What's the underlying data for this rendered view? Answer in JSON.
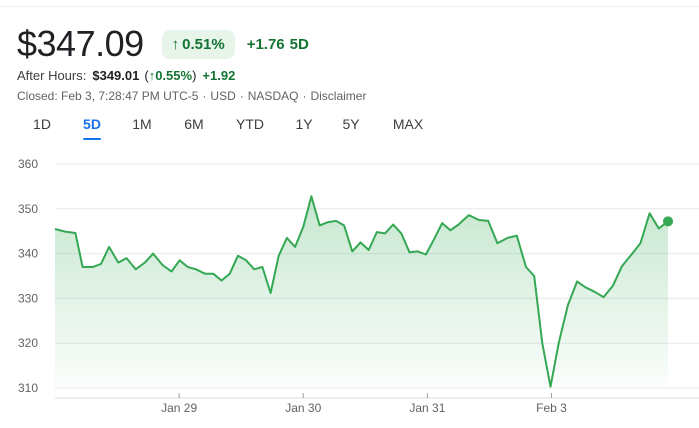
{
  "quote": {
    "price": "$347.09",
    "change_pct": "0.51%",
    "change_abs": "+1.76",
    "period": "5D",
    "after_hours_label": "After Hours:",
    "after_hours_price": "$349.01",
    "after_hours_pct": "0.55%",
    "after_hours_change": "+1.92",
    "closed_text": "Closed: Feb 3, 7:28:47 PM UTC-5",
    "currency": "USD",
    "exchange": "NASDAQ",
    "disclaimer": "Disclaimer"
  },
  "tabs": [
    {
      "label": "1D",
      "active": false
    },
    {
      "label": "5D",
      "active": true
    },
    {
      "label": "1M",
      "active": false
    },
    {
      "label": "6M",
      "active": false
    },
    {
      "label": "YTD",
      "active": false
    },
    {
      "label": "1Y",
      "active": false
    },
    {
      "label": "5Y",
      "active": false
    },
    {
      "label": "MAX",
      "active": false
    }
  ],
  "colors": {
    "line": "#34a853",
    "positive_text": "#137333",
    "chip_bg": "#e6f4ea",
    "accent": "#1a73e8"
  },
  "chart_data": {
    "type": "area",
    "yticks": [
      310,
      320,
      330,
      340,
      350,
      360
    ],
    "ylim": [
      310,
      360
    ],
    "grid": true,
    "xticks": [
      {
        "label": "Jan 29",
        "t": 12.15
      },
      {
        "label": "Jan 30",
        "t": 24.3
      },
      {
        "label": "Jan 31",
        "t": 36.45
      },
      {
        "label": "Feb 3",
        "t": 48.6
      }
    ],
    "xlim": [
      0,
      60
    ],
    "series": [
      {
        "points": [
          [
            0,
            345.5
          ],
          [
            1,
            344.9
          ],
          [
            2,
            344.6
          ],
          [
            2.7,
            337.0
          ],
          [
            3.7,
            337.0
          ],
          [
            4.5,
            337.7
          ],
          [
            5.3,
            341.5
          ],
          [
            6.2,
            338.0
          ],
          [
            7.0,
            339.0
          ],
          [
            7.9,
            336.5
          ],
          [
            8.8,
            338.0
          ],
          [
            9.6,
            340.0
          ],
          [
            10.5,
            337.5
          ],
          [
            11.4,
            336.0
          ],
          [
            12.2,
            338.5
          ],
          [
            13.0,
            337.0
          ],
          [
            13.8,
            336.5
          ],
          [
            14.7,
            335.5
          ],
          [
            15.5,
            335.5
          ],
          [
            16.3,
            334.0
          ],
          [
            17.1,
            335.5
          ],
          [
            17.9,
            339.5
          ],
          [
            18.7,
            338.5
          ],
          [
            19.5,
            336.5
          ],
          [
            20.3,
            337.0
          ],
          [
            21.1,
            331.2
          ],
          [
            21.9,
            339.5
          ],
          [
            22.7,
            343.5
          ],
          [
            23.5,
            341.5
          ],
          [
            24.3,
            346.0
          ],
          [
            25.1,
            352.8
          ],
          [
            25.9,
            346.3
          ],
          [
            26.7,
            347.0
          ],
          [
            27.5,
            347.3
          ],
          [
            28.3,
            346.3
          ],
          [
            29.1,
            340.5
          ],
          [
            29.9,
            342.5
          ],
          [
            30.7,
            340.8
          ],
          [
            31.5,
            344.8
          ],
          [
            32.3,
            344.5
          ],
          [
            33.1,
            346.5
          ],
          [
            33.9,
            344.5
          ],
          [
            34.7,
            340.3
          ],
          [
            35.5,
            340.5
          ],
          [
            36.3,
            339.8
          ],
          [
            37.1,
            343.2
          ],
          [
            37.9,
            346.8
          ],
          [
            38.7,
            345.2
          ],
          [
            39.5,
            346.5
          ],
          [
            40.5,
            348.6
          ],
          [
            41.5,
            347.5
          ],
          [
            42.4,
            347.3
          ],
          [
            43.3,
            342.3
          ],
          [
            44.3,
            343.5
          ],
          [
            45.2,
            344.0
          ],
          [
            46.1,
            337.0
          ],
          [
            46.9,
            335.0
          ],
          [
            47.7,
            320.0
          ],
          [
            48.5,
            310.3
          ],
          [
            49.3,
            320.0
          ],
          [
            50.2,
            328.5
          ],
          [
            51.1,
            333.8
          ],
          [
            51.9,
            332.5
          ],
          [
            52.8,
            331.5
          ],
          [
            53.7,
            330.3
          ],
          [
            54.6,
            332.8
          ],
          [
            55.5,
            337.2
          ],
          [
            56.4,
            339.7
          ],
          [
            57.3,
            342.3
          ],
          [
            58.2,
            349.0
          ],
          [
            59.1,
            345.6
          ],
          [
            60.0,
            347.2
          ]
        ]
      }
    ]
  }
}
